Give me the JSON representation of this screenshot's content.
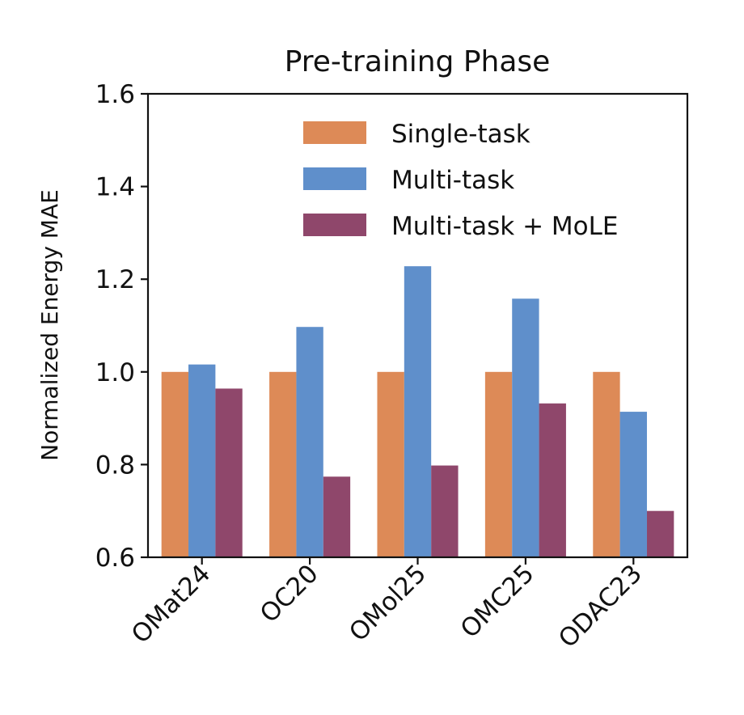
{
  "chart_data": {
    "type": "bar",
    "title": "Pre-training Phase",
    "xlabel": "",
    "ylabel": "Normalized Energy MAE",
    "categories": [
      "OMat24",
      "OC20",
      "OMol25",
      "OMC25",
      "ODAC23"
    ],
    "series": [
      {
        "name": "Single-task",
        "values": [
          1.0,
          1.0,
          1.0,
          1.0,
          1.0
        ],
        "color": "#dd8a57"
      },
      {
        "name": "Multi-task",
        "values": [
          1.016,
          1.097,
          1.228,
          1.158,
          0.914
        ],
        "color": "#5f8fcb"
      },
      {
        "name": "Multi-task + MoLE",
        "values": [
          0.964,
          0.774,
          0.798,
          0.932,
          0.7
        ],
        "color": "#8f476b"
      }
    ],
    "ylim": [
      0.6,
      1.6
    ],
    "yticks": [
      "0.6",
      "0.8",
      "1.0",
      "1.2",
      "1.4",
      "1.6"
    ],
    "grid": false,
    "legend_position": "top-right"
  }
}
